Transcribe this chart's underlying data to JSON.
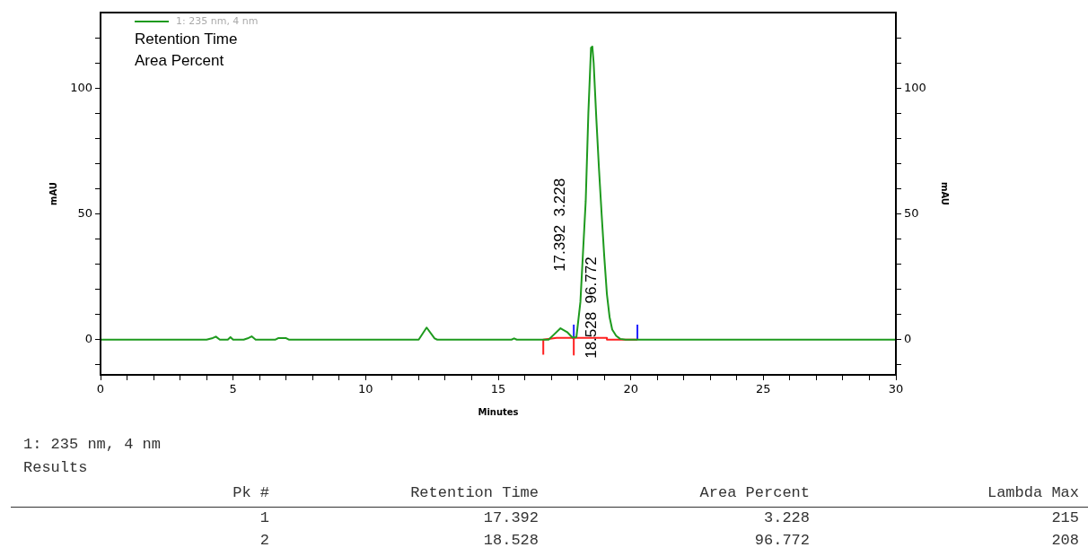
{
  "chart_data": {
    "type": "line",
    "xlabel": "Minutes",
    "ylabel": "mAU",
    "y2label": "mAU",
    "xlim": [
      0,
      30
    ],
    "xticks": [
      0,
      {
        "value": 1,
        "label": null
      },
      {
        "value": 2,
        "label": null
      },
      {
        "value": 3,
        "label": null
      },
      {
        "value": 4,
        "label": null
      },
      5,
      {
        "value": 6,
        "label": null
      },
      {
        "value": 7,
        "label": null
      },
      {
        "value": 8,
        "label": null
      },
      {
        "value": 9,
        "label": null
      },
      10,
      {
        "value": 11,
        "label": null
      },
      {
        "value": 12,
        "label": null
      },
      {
        "value": 13,
        "label": null
      },
      {
        "value": 14,
        "label": null
      },
      15,
      {
        "value": 16,
        "label": null
      },
      {
        "value": 17,
        "label": null
      },
      {
        "value": 18,
        "label": null
      },
      {
        "value": 19,
        "label": null
      },
      20,
      {
        "value": 21,
        "label": null
      },
      {
        "value": 22,
        "label": null
      },
      {
        "value": 23,
        "label": null
      },
      {
        "value": 24,
        "label": null
      },
      25,
      {
        "value": 26,
        "label": null
      },
      {
        "value": 27,
        "label": null
      },
      {
        "value": 28,
        "label": null
      },
      {
        "value": 29,
        "label": null
      },
      30
    ],
    "ylim": [
      -14,
      130
    ],
    "yticks": [
      {
        "value": -10,
        "label": null
      },
      0,
      {
        "value": 10,
        "label": null
      },
      {
        "value": 20,
        "label": null
      },
      {
        "value": 30,
        "label": null
      },
      {
        "value": 40,
        "label": null
      },
      50,
      {
        "value": 60,
        "label": null
      },
      {
        "value": 70,
        "label": null
      },
      {
        "value": 80,
        "label": null
      },
      {
        "value": 90,
        "label": null
      },
      100,
      {
        "value": 110,
        "label": null
      },
      {
        "value": 120,
        "label": null
      }
    ],
    "y2lim": [
      -14,
      130
    ],
    "y2ticks": [
      {
        "value": -10,
        "label": null
      },
      0,
      {
        "value": 10,
        "label": null
      },
      {
        "value": 20,
        "label": null
      },
      {
        "value": 30,
        "label": null
      },
      {
        "value": 40,
        "label": null
      },
      50,
      {
        "value": 60,
        "label": null
      },
      {
        "value": 70,
        "label": null
      },
      {
        "value": 80,
        "label": null
      },
      {
        "value": 90,
        "label": null
      },
      100,
      {
        "value": 110,
        "label": null
      },
      {
        "value": 120,
        "label": null
      }
    ],
    "legend": "top left",
    "grid": false,
    "marker": "none",
    "line_style": "solid",
    "series": [
      {
        "name": "1: 235 nm, 4 nm",
        "color": "#1e9a1e",
        "x": [
          0,
          4.0,
          4.2,
          4.35,
          4.5,
          4.8,
          4.9,
          5.0,
          5.4,
          5.55,
          5.7,
          5.85,
          6.6,
          6.7,
          7.0,
          7.1,
          12.0,
          12.3,
          12.6,
          12.7,
          15.5,
          15.6,
          15.7,
          16.9,
          17.1,
          17.35,
          17.6,
          17.8,
          17.95,
          18.1,
          18.2,
          18.3,
          18.4,
          18.5,
          18.55,
          18.6,
          18.7,
          18.8,
          18.9,
          19.0,
          19.1,
          19.2,
          19.3,
          19.45,
          19.6,
          19.8,
          30
        ],
        "values": [
          0,
          0,
          0.5,
          1.2,
          0,
          0,
          1,
          0,
          0,
          0.5,
          1.3,
          0,
          0,
          0.6,
          0.6,
          0,
          0,
          4.8,
          0.5,
          0,
          0,
          0.5,
          0,
          0,
          2,
          4.5,
          3,
          0.8,
          1,
          15,
          35,
          55,
          90,
          116,
          116.5,
          110,
          88,
          68,
          50,
          33,
          18,
          9,
          4,
          1.5,
          0.3,
          0,
          0
        ]
      },
      {
        "color": "#ff2020",
        "x": [
          16.7,
          16.7,
          17.2,
          17.85,
          17.85,
          17.85,
          19.1,
          19.1,
          20.25
        ],
        "values": [
          -6,
          0,
          0.7,
          0.7,
          -6,
          0.7,
          0.7,
          0,
          0
        ]
      },
      {
        "color": "#2020ff",
        "x": [
          17.85,
          17.85,
          null,
          20.25,
          20.25
        ],
        "values": [
          0,
          6,
          null,
          0,
          6
        ]
      }
    ],
    "annotations": [
      "Retention Time",
      "Area Percent",
      "17.392  3.228",
      "18.528  96.772",
      "1: 235 nm, 4 nm",
      "Results",
      "Pk #",
      "Retention Time",
      "Area Percent",
      "Lambda Max",
      "1",
      "17.392",
      "3.228",
      "215",
      "2",
      "18.528",
      "96.772",
      "208"
    ]
  }
}
